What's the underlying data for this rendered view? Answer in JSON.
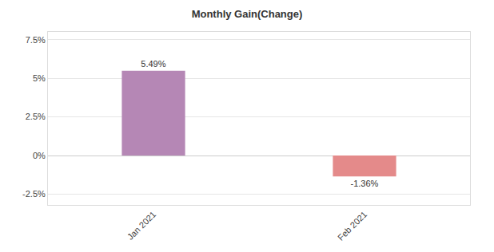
{
  "chart_data": {
    "type": "bar",
    "title": "Monthly Gain(Change)",
    "categories": [
      "Jan 2021",
      "Feb 2021"
    ],
    "values": [
      5.49,
      -1.36
    ],
    "value_labels": [
      "5.49%",
      "-1.36%"
    ],
    "colors": [
      "#b587b5",
      "#e48a8a"
    ],
    "ylim": [
      -3.2,
      8
    ],
    "yticks": [
      {
        "value": -2.5,
        "label": "-2.5%"
      },
      {
        "value": 0,
        "label": "0%"
      },
      {
        "value": 2.5,
        "label": "2.5%"
      },
      {
        "value": 5,
        "label": "5%"
      },
      {
        "value": 7.5,
        "label": "7.5%"
      }
    ],
    "grid": true,
    "data_labels": true
  }
}
